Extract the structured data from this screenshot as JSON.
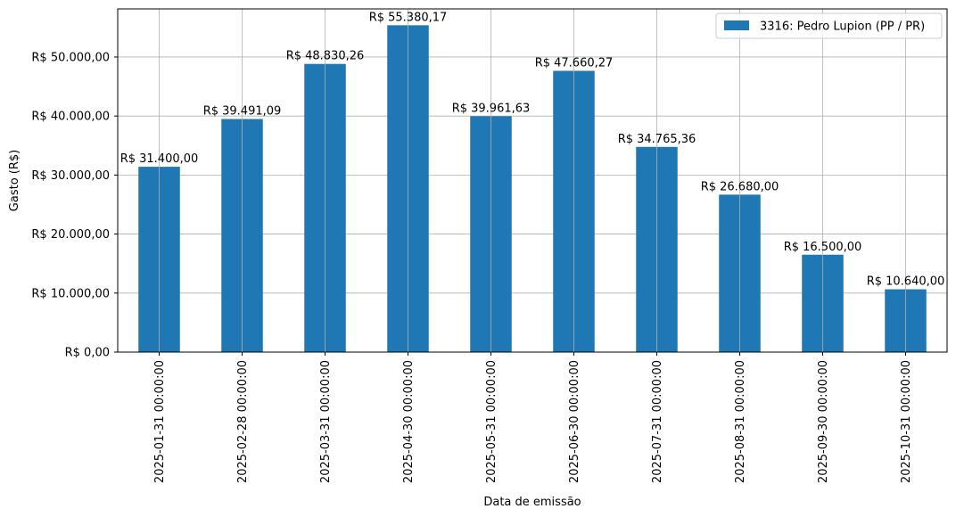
{
  "chart_data": {
    "type": "bar",
    "categories": [
      "2025-01-31 00:00:00",
      "2025-02-28 00:00:00",
      "2025-03-31 00:00:00",
      "2025-04-30 00:00:00",
      "2025-05-31 00:00:00",
      "2025-06-30 00:00:00",
      "2025-07-31 00:00:00",
      "2025-08-31 00:00:00",
      "2025-09-30 00:00:00",
      "2025-10-31 00:00:00"
    ],
    "series": [
      {
        "name": "3316: Pedro Lupion (PP / PR)",
        "color": "#1f77b4",
        "values": [
          31400.0,
          39491.09,
          48830.26,
          55380.17,
          39961.63,
          47660.27,
          34765.36,
          26680.0,
          16500.0,
          10640.0
        ]
      }
    ],
    "data_labels": [
      "R$ 31.400,00",
      "R$ 39.491,09",
      "R$ 48.830,26",
      "R$ 55.380,17",
      "R$ 39.961,63",
      "R$ 47.660,27",
      "R$ 34.765,36",
      "R$ 26.680,00",
      "R$ 16.500,00",
      "R$ 10.640,00"
    ],
    "xlabel": "Data de emissão",
    "ylabel": "Gasto (R$)",
    "ylim": [
      0,
      58149.18
    ],
    "yticks": [
      0,
      10000,
      20000,
      30000,
      40000,
      50000
    ],
    "ytick_labels": [
      "R$ 0,00",
      "R$ 10.000,00",
      "R$ 20.000,00",
      "R$ 30.000,00",
      "R$ 40.000,00",
      "R$ 50.000,00"
    ],
    "grid": true,
    "legend_position": "top-right"
  }
}
